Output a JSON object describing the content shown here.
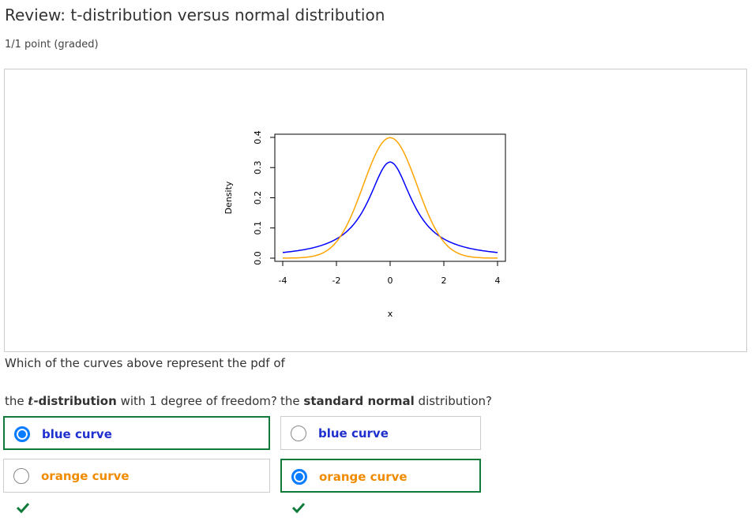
{
  "page": {
    "title": "Review: t-distribution versus normal distribution",
    "score": "1/1 point (graded)"
  },
  "chart_data": {
    "type": "line",
    "xlabel": "x",
    "ylabel": "Density",
    "xlim": [
      -4,
      4
    ],
    "ylim": [
      0,
      0.4
    ],
    "x_ticks": [
      "-4",
      "-2",
      "0",
      "2",
      "4"
    ],
    "y_ticks": [
      "0.0",
      "0.1",
      "0.2",
      "0.3",
      "0.4"
    ],
    "grid": false,
    "series": [
      {
        "color": "#0000ff",
        "x": [
          -4,
          -3.5,
          -3,
          -2.5,
          -2,
          -1.5,
          -1,
          -0.5,
          0,
          0.5,
          1,
          1.5,
          2,
          2.5,
          3,
          3.5,
          4
        ],
        "y": [
          0.019,
          0.024,
          0.032,
          0.044,
          0.064,
          0.098,
          0.159,
          0.255,
          0.318,
          0.255,
          0.159,
          0.098,
          0.064,
          0.044,
          0.032,
          0.024,
          0.019
        ]
      },
      {
        "color": "#ffa500",
        "x": [
          -4,
          -3.5,
          -3,
          -2.5,
          -2,
          -1.5,
          -1,
          -0.5,
          0,
          0.5,
          1,
          1.5,
          2,
          2.5,
          3,
          3.5,
          4
        ],
        "y": [
          0.0001,
          0.0009,
          0.0044,
          0.0175,
          0.054,
          0.13,
          0.242,
          0.352,
          0.399,
          0.352,
          0.242,
          0.13,
          0.054,
          0.0175,
          0.0044,
          0.0009,
          0.0001
        ]
      }
    ]
  },
  "question": {
    "prompt": "Which of the curves above represent the pdf of",
    "q1": {
      "prefix": "the ",
      "symbol": "t",
      "bold": "-distribution",
      "suffix": " with 1 degree of freedom?",
      "options": [
        {
          "label": "blue curve",
          "selected": true
        },
        {
          "label": "orange curve",
          "selected": false
        }
      ],
      "correct": true
    },
    "q2": {
      "prefix": "the ",
      "bold": "standard normal",
      "suffix": " distribution?",
      "options": [
        {
          "label": "blue curve",
          "selected": false
        },
        {
          "label": "orange curve",
          "selected": true
        }
      ],
      "correct": true
    }
  },
  "colors": {
    "blue_label": "#1f2fcf",
    "orange_label": "#f08b00",
    "correct_border": "#0f7a3a",
    "radio_selected": "#0a7cff"
  },
  "icons": {
    "correct": "checkmark-icon"
  }
}
